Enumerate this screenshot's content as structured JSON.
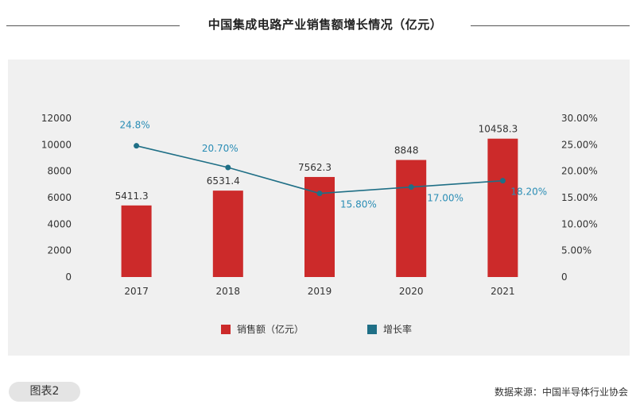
{
  "header": {
    "title": "中国集成电路产业销售额增长情况（亿元）"
  },
  "footer": {
    "figure_label": "图表2",
    "source": "数据来源：中国半导体行业协会"
  },
  "colors": {
    "bar": "#cc2a2a",
    "line": "#1f6f86",
    "rate_label": "#2a8db5",
    "panel_bg": "#f0f0f0"
  },
  "chart_data": {
    "type": "bar",
    "categories": [
      "2017",
      "2018",
      "2019",
      "2020",
      "2021"
    ],
    "series": [
      {
        "name": "销售额（亿元）",
        "type": "bar",
        "axis": "left",
        "values": [
          5411.3,
          6531.4,
          7562.3,
          8848,
          10458.3
        ],
        "labels": [
          "5411.3",
          "6531.4",
          "7562.3",
          "8848",
          "10458.3"
        ]
      },
      {
        "name": "增长率",
        "type": "line",
        "axis": "right",
        "values": [
          24.8,
          20.7,
          15.8,
          17.0,
          18.2
        ],
        "labels": [
          "24.8%",
          "20.70%",
          "15.80%",
          "17.00%",
          "18.20%"
        ]
      }
    ],
    "y_left": {
      "ylim": [
        0,
        12000
      ],
      "ticks": [
        "0",
        "2000",
        "4000",
        "6000",
        "8000",
        "10000",
        "12000"
      ]
    },
    "y_right": {
      "ylim": [
        0,
        30
      ],
      "ticks": [
        "0",
        "5.00%",
        "10.00%",
        "15.00%",
        "20.00%",
        "25.00%",
        "30.00%"
      ]
    },
    "grid": false,
    "legend_position": "bottom"
  }
}
